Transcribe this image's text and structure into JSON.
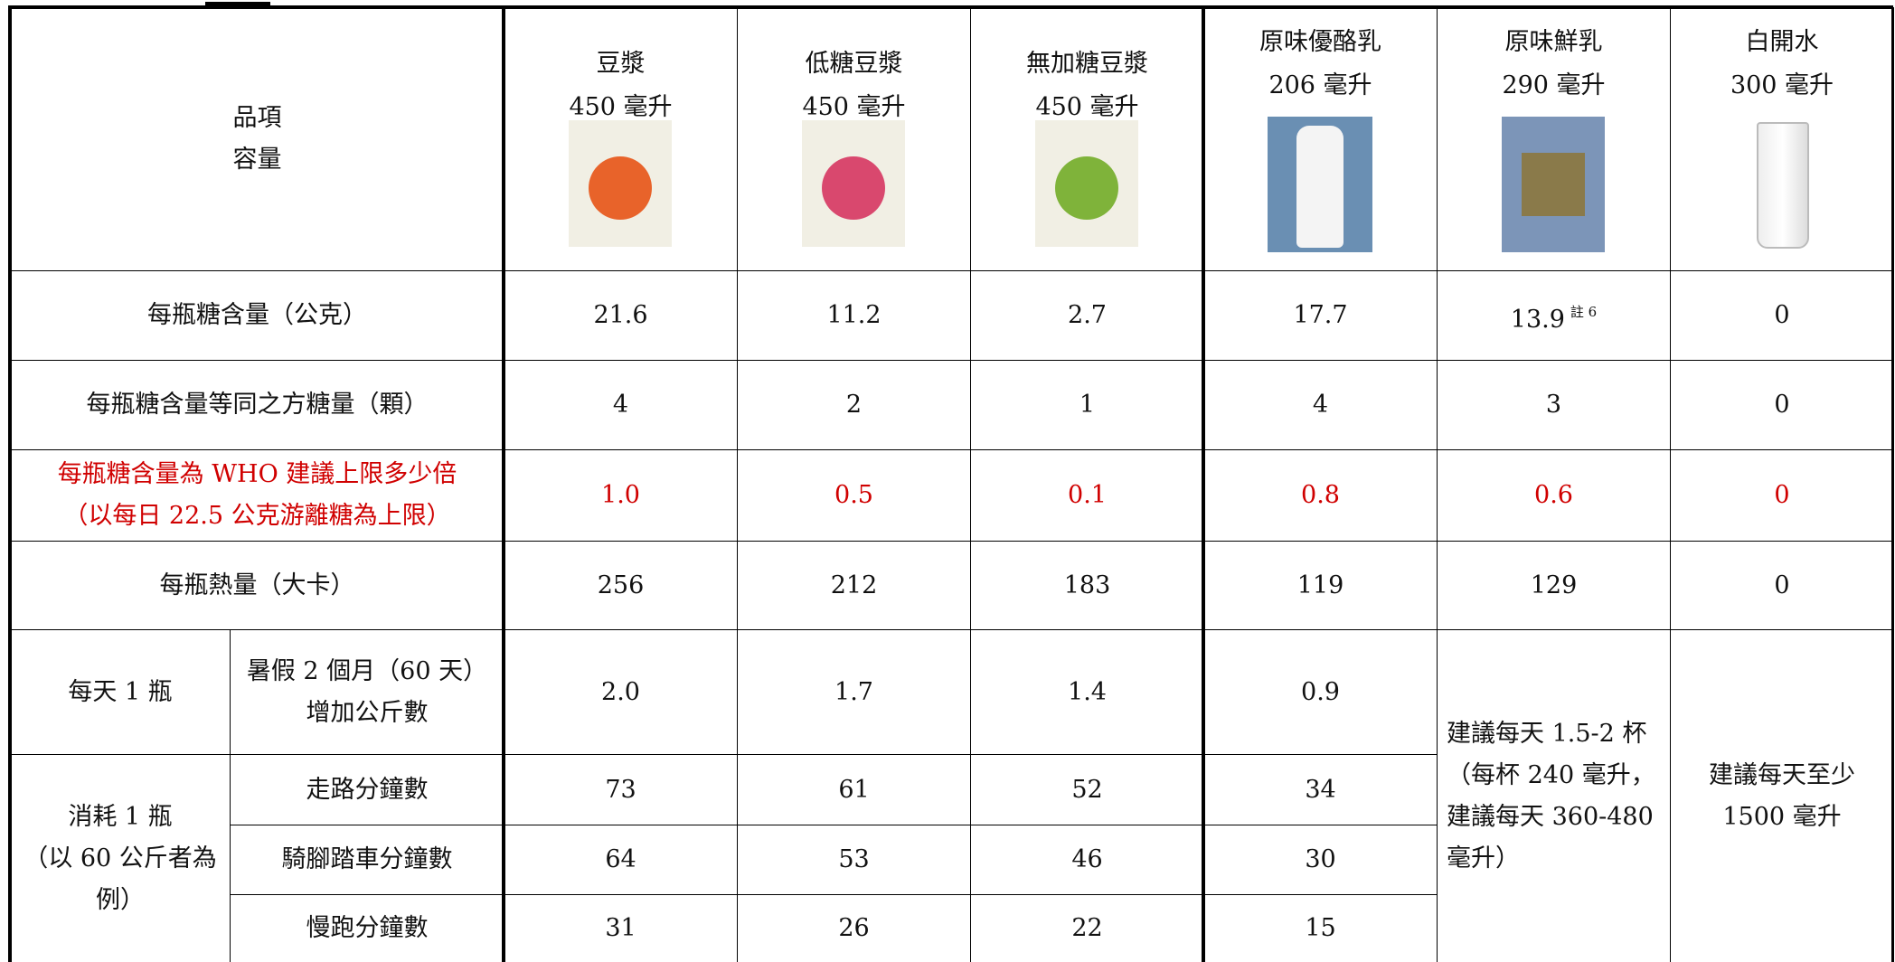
{
  "header": {
    "label": [
      "品項",
      "容量"
    ]
  },
  "products": [
    {
      "name": "豆漿",
      "volume": "450 毫升"
    },
    {
      "name": "低糖豆漿",
      "volume": "450 毫升"
    },
    {
      "name": "無加糖豆漿",
      "volume": "450 毫升"
    },
    {
      "name": "原味優酪乳",
      "volume": "206 毫升"
    },
    {
      "name": "原味鮮乳",
      "volume": "290 毫升"
    },
    {
      "name": "白開水",
      "volume": "300 毫升"
    }
  ],
  "rows": [
    {
      "label": [
        "每瓶糖含量（公克）"
      ],
      "values": [
        "21.6",
        "11.2",
        "2.7",
        "17.7",
        {
          "text": "13.9",
          "note": "註 6"
        },
        "0"
      ]
    },
    {
      "label": [
        "每瓶糖含量等同之方糖量（顆）"
      ],
      "values": [
        "4",
        "2",
        "1",
        "4",
        "3",
        "0"
      ]
    },
    {
      "label": [
        "每瓶糖含量為 WHO 建議上限多少倍",
        "（以每日 22.5 公克游離糖為上限）"
      ],
      "values": [
        "1.0",
        "0.5",
        "0.1",
        "0.8",
        "0.6",
        "0"
      ],
      "highlight": true
    },
    {
      "label": [
        "每瓶熱量（大卡）"
      ],
      "values": [
        "256",
        "212",
        "183",
        "119",
        "129",
        "0"
      ]
    }
  ],
  "weight_gain": {
    "group": [
      "每天 1 瓶"
    ],
    "label": [
      "暑假 2 個月（60 天）",
      "增加公斤數"
    ],
    "values": [
      "2.0",
      "1.7",
      "1.4",
      "0.9"
    ]
  },
  "burn": {
    "group": [
      "消耗 1 瓶",
      "（以 60 公斤者為",
      "例）"
    ],
    "rows": [
      {
        "label": "走路分鐘數",
        "values": [
          "73",
          "61",
          "52",
          "34"
        ]
      },
      {
        "label": "騎腳踏車分鐘數",
        "values": [
          "64",
          "53",
          "46",
          "30"
        ]
      },
      {
        "label": "慢跑分鐘數",
        "values": [
          "31",
          "26",
          "22",
          "15"
        ]
      }
    ]
  },
  "recommendations": {
    "milk": [
      "建議每天 1.5-2 杯",
      "（每杯 240 毫升，",
      "建議每天 360-480",
      "毫升）"
    ],
    "water": [
      "建議每天至少",
      "1500 毫升"
    ]
  }
}
